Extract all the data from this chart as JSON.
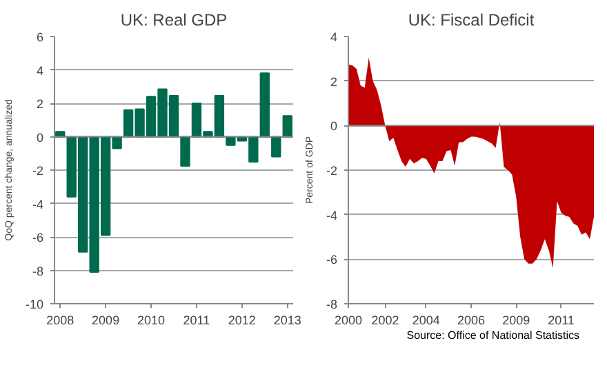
{
  "chart_data": [
    {
      "type": "bar",
      "title": "UK: Real GDP",
      "ylabel": "QoQ percent change, annualized",
      "categories": [
        "2008",
        null,
        null,
        null,
        "2009",
        null,
        null,
        null,
        "2010",
        null,
        null,
        null,
        "2011",
        null,
        null,
        null,
        "2012",
        null,
        null,
        null,
        "2013"
      ],
      "values": [
        0.3,
        -3.6,
        -6.9,
        -8.1,
        -5.9,
        -0.7,
        1.6,
        1.65,
        2.4,
        2.85,
        2.45,
        -1.75,
        2.0,
        0.3,
        2.45,
        -0.5,
        -0.25,
        -1.5,
        3.8,
        -1.2,
        1.25
      ],
      "color": "#006a4e",
      "ylim": [
        -10,
        6
      ],
      "yticks": [
        -10,
        -8,
        -6,
        -4,
        -2,
        0,
        2,
        4,
        6
      ],
      "grid": "y"
    },
    {
      "type": "area",
      "title": "UK: Fiscal Deficit",
      "ylabel": "Percent of GDP",
      "categories": [
        "2000",
        null,
        null,
        null,
        null,
        null,
        null,
        null,
        null,
        "2002",
        null,
        null,
        null,
        null,
        null,
        null,
        null,
        null,
        null,
        "2004",
        null,
        null,
        null,
        null,
        null,
        null,
        null,
        null,
        null,
        null,
        "2006",
        null,
        null,
        null,
        null,
        null,
        null,
        null,
        null,
        null,
        null,
        "2009",
        null,
        null,
        null,
        null,
        null,
        null,
        null,
        null,
        null,
        null,
        "2011",
        null,
        null,
        null,
        null,
        null,
        null,
        null,
        null
      ],
      "values": [
        2.75,
        2.7,
        2.55,
        1.8,
        1.7,
        3.05,
        2.0,
        1.6,
        0.9,
        0.0,
        -0.7,
        -0.55,
        -1.1,
        -1.6,
        -1.85,
        -1.5,
        -1.7,
        -1.6,
        -1.45,
        -1.5,
        -1.8,
        -2.15,
        -1.6,
        -1.6,
        -1.15,
        -1.1,
        -1.8,
        -0.75,
        -0.75,
        -0.6,
        -0.5,
        -0.5,
        -0.55,
        -0.6,
        -0.7,
        -0.8,
        -1.0,
        0.15,
        -1.85,
        -2.0,
        -2.2,
        -3.2,
        -5.0,
        -6.0,
        -6.2,
        -6.2,
        -6.0,
        -5.6,
        -5.1,
        -5.6,
        -6.4,
        -3.4,
        -3.9,
        -4.05,
        -4.1,
        -4.4,
        -4.5,
        -4.9,
        -4.8,
        -5.1,
        -4.1
      ],
      "color": "#c00000",
      "ylim": [
        -8,
        4
      ],
      "yticks": [
        -8,
        -6,
        -4,
        -2,
        0,
        2,
        4
      ],
      "grid": "y",
      "annotations": [
        "Source: Office of National Statistics"
      ]
    }
  ]
}
